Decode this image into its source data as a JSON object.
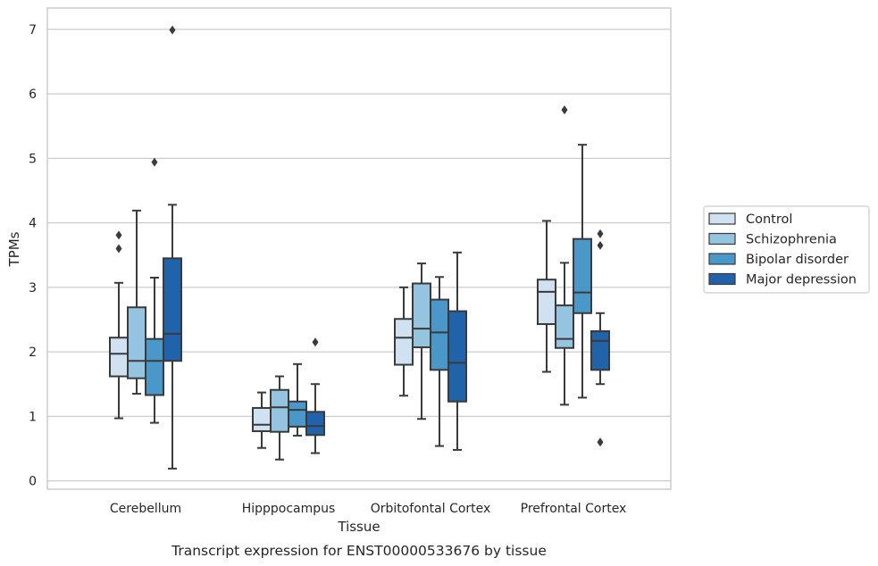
{
  "caption": "Transcript expression for ENST00000533676 by tissue",
  "chart_data": {
    "type": "box",
    "xlabel": "Tissue",
    "ylabel": "TPMs",
    "ylim": [
      -0.13,
      7.33
    ],
    "yticks": [
      0,
      1,
      2,
      3,
      4,
      5,
      6,
      7
    ],
    "grid": "horizontal",
    "legend_position": "right",
    "categories": [
      "Cerebellum",
      "Hipppocampus",
      "Orbitofontal Cortex",
      "Prefrontal Cortex"
    ],
    "series": [
      {
        "name": "Control",
        "color": "#d0e1f2",
        "boxes": [
          {
            "whisker_low": 0.97,
            "q1": 1.62,
            "median": 1.97,
            "q3": 2.22,
            "whisker_high": 3.07,
            "outliers": [
              3.6,
              3.81
            ]
          },
          {
            "whisker_low": 0.51,
            "q1": 0.77,
            "median": 0.87,
            "q3": 1.13,
            "whisker_high": 1.37,
            "outliers": []
          },
          {
            "whisker_low": 1.32,
            "q1": 1.8,
            "median": 2.22,
            "q3": 2.51,
            "whisker_high": 3.0,
            "outliers": []
          },
          {
            "whisker_low": 1.69,
            "q1": 2.43,
            "median": 2.93,
            "q3": 3.12,
            "whisker_high": 4.03,
            "outliers": []
          }
        ]
      },
      {
        "name": "Schizophrenia",
        "color": "#94c4df",
        "boxes": [
          {
            "whisker_low": 1.35,
            "q1": 1.59,
            "median": 1.86,
            "q3": 2.69,
            "whisker_high": 4.19,
            "outliers": []
          },
          {
            "whisker_low": 0.33,
            "q1": 0.76,
            "median": 1.14,
            "q3": 1.41,
            "whisker_high": 1.62,
            "outliers": []
          },
          {
            "whisker_low": 0.96,
            "q1": 2.07,
            "median": 2.36,
            "q3": 3.06,
            "whisker_high": 3.37,
            "outliers": []
          },
          {
            "whisker_low": 1.18,
            "q1": 2.06,
            "median": 2.2,
            "q3": 2.72,
            "whisker_high": 3.38,
            "outliers": [
              5.75
            ]
          }
        ]
      },
      {
        "name": "Bipolar disorder",
        "color": "#4a98c9",
        "boxes": [
          {
            "whisker_low": 0.9,
            "q1": 1.33,
            "median": 1.86,
            "q3": 2.2,
            "whisker_high": 3.15,
            "outliers": [
              4.94
            ]
          },
          {
            "whisker_low": 0.7,
            "q1": 0.84,
            "median": 1.1,
            "q3": 1.23,
            "whisker_high": 1.81,
            "outliers": []
          },
          {
            "whisker_low": 0.54,
            "q1": 1.72,
            "median": 2.3,
            "q3": 2.81,
            "whisker_high": 3.16,
            "outliers": []
          },
          {
            "whisker_low": 1.29,
            "q1": 2.6,
            "median": 2.92,
            "q3": 3.75,
            "whisker_high": 5.21,
            "outliers": []
          }
        ]
      },
      {
        "name": "Major depression",
        "color": "#2163aa",
        "boxes": [
          {
            "whisker_low": 0.19,
            "q1": 1.86,
            "median": 2.28,
            "q3": 3.45,
            "whisker_high": 4.28,
            "outliers": [
              6.99
            ]
          },
          {
            "whisker_low": 0.43,
            "q1": 0.71,
            "median": 0.85,
            "q3": 1.07,
            "whisker_high": 1.5,
            "outliers": [
              2.15
            ]
          },
          {
            "whisker_low": 0.48,
            "q1": 1.23,
            "median": 1.83,
            "q3": 2.63,
            "whisker_high": 3.54,
            "outliers": []
          },
          {
            "whisker_low": 1.5,
            "q1": 1.72,
            "median": 2.17,
            "q3": 2.32,
            "whisker_high": 2.6,
            "outliers": [
              0.6,
              3.65,
              3.83
            ]
          }
        ]
      }
    ]
  }
}
